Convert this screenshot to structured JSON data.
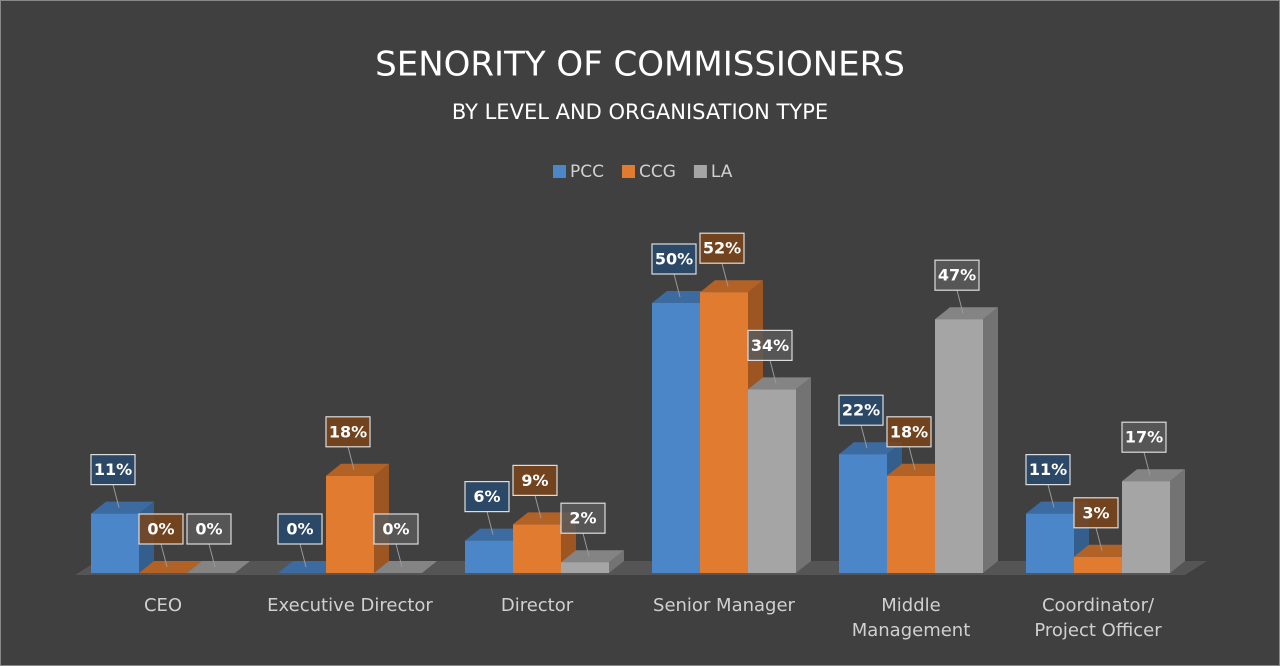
{
  "chart_data": {
    "type": "bar3d",
    "title": "SENORITY OF COMMISSIONERS",
    "subtitle": "BY LEVEL AND ORGANISATION TYPE",
    "legend": "top",
    "categories": [
      "CEO",
      "Executive Director",
      "Director",
      "Senior Manager",
      "Middle Management",
      "Coordinator/ Project Officer"
    ],
    "series": [
      {
        "name": "PCC",
        "color": "#4a86c8",
        "values": [
          11,
          0,
          6,
          50,
          22,
          11
        ],
        "value_labels": [
          "11%",
          "0%",
          "6%",
          "50%",
          "22%",
          "11%"
        ]
      },
      {
        "name": "CCG",
        "color": "#e07b30",
        "values": [
          0,
          18,
          9,
          52,
          18,
          3
        ],
        "value_labels": [
          "0%",
          "18%",
          "9%",
          "52%",
          "18%",
          "3%"
        ]
      },
      {
        "name": "LA",
        "color": "#a5a5a5",
        "values": [
          0,
          0,
          2,
          34,
          47,
          17
        ],
        "value_labels": [
          "0%",
          "0%",
          "2%",
          "34%",
          "47%",
          "17%"
        ]
      }
    ]
  }
}
